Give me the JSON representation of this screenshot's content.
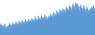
{
  "chart_data": {
    "type": "area",
    "values": [
      32,
      18,
      28,
      15,
      25,
      12,
      30,
      16,
      22,
      14,
      26,
      18,
      32,
      20,
      28,
      16,
      34,
      22,
      30,
      18,
      36,
      24,
      32,
      20,
      38,
      26,
      34,
      22,
      40,
      28,
      36,
      24,
      42,
      30,
      38,
      26,
      44,
      32,
      40,
      28,
      46,
      34,
      42,
      30,
      50,
      36,
      44,
      32,
      52,
      38,
      46,
      34,
      54,
      40,
      48,
      36,
      56,
      42,
      50,
      38,
      44,
      52,
      40,
      58,
      46,
      54,
      42,
      62,
      50,
      58,
      46,
      66,
      54,
      62,
      50,
      70,
      58,
      66,
      54,
      72,
      60,
      68,
      56,
      76,
      64,
      72,
      60,
      80,
      68,
      76,
      52,
      84,
      72,
      80,
      60,
      88,
      76,
      84,
      62,
      78,
      54,
      82,
      68,
      74,
      56,
      80,
      66,
      72,
      52,
      76,
      62,
      68,
      54,
      72,
      60,
      76,
      64,
      80,
      68,
      72
    ],
    "color": "#5b9bd5",
    "ylim": [
      0,
      95.04
    ],
    "grid": false,
    "tick_labels": false
  }
}
